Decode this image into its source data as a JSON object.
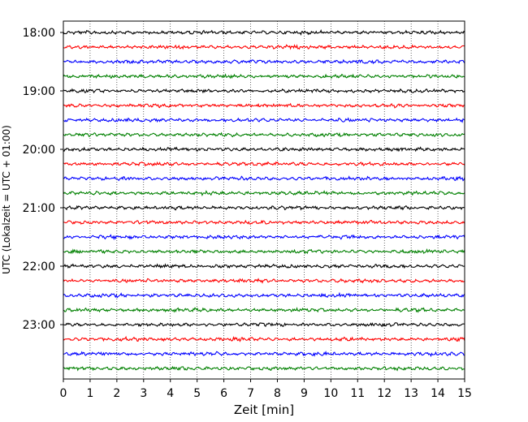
{
  "chart_data": {
    "type": "line",
    "title": "",
    "xlabel": "Zeit  [min]",
    "ylabel": "UTC (Lokalzeit = UTC + 01:00)",
    "xlim": [
      0,
      15
    ],
    "x_ticks": [
      "0",
      "1",
      "2",
      "3",
      "4",
      "5",
      "6",
      "7",
      "8",
      "9",
      "10",
      "11",
      "12",
      "13",
      "14",
      "15"
    ],
    "y_tick_labels": [
      "18:00",
      "19:00",
      "20:00",
      "21:00",
      "22:00",
      "23:00"
    ],
    "trace_start": "18:00",
    "trace_interval_minutes": 15,
    "trace_count": 24,
    "trace_colors": [
      "#000000",
      "#ff0000",
      "#0000ff",
      "#008000"
    ],
    "grid": "vertical dotted",
    "legend": "none"
  }
}
